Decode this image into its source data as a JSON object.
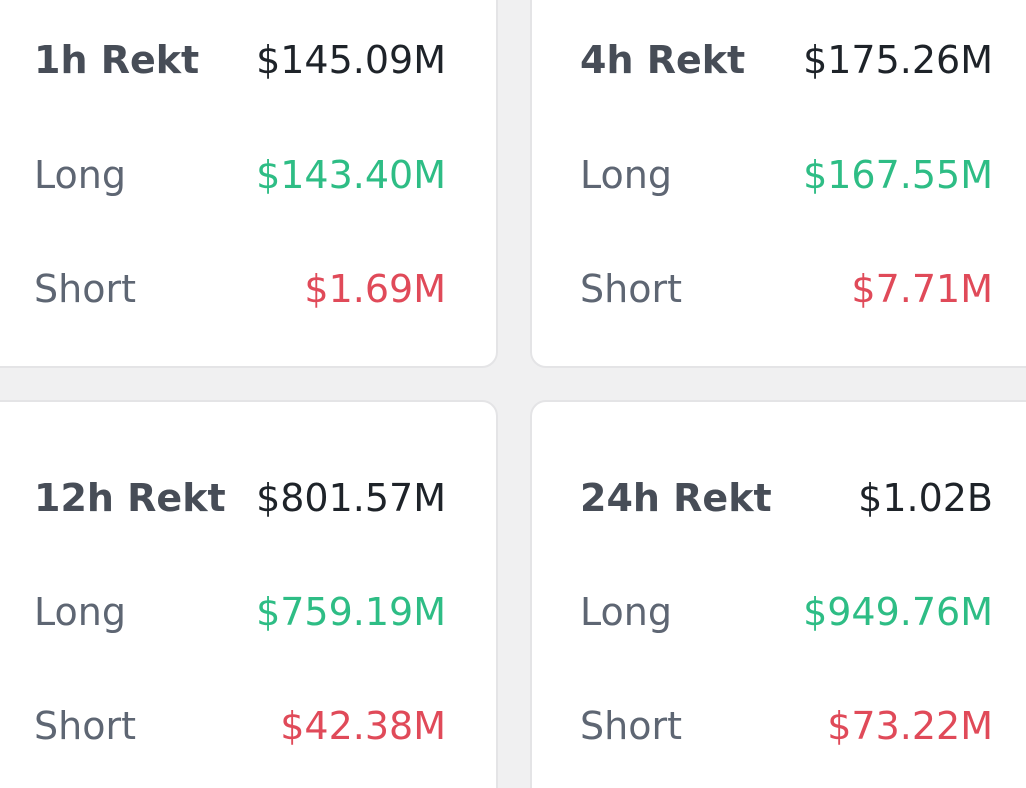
{
  "colors": {
    "background": "#f0f0f1",
    "card": "#ffffff",
    "long": "#2ebd85",
    "short": "#e04a59",
    "total": "#1e2329",
    "label": "#474d57"
  },
  "cards": [
    {
      "title": "1h Rekt",
      "total": "$145.09M",
      "long_label": "Long",
      "long_value": "$143.40M",
      "short_label": "Short",
      "short_value": "$1.69M"
    },
    {
      "title": "4h Rekt",
      "total": "$175.26M",
      "long_label": "Long",
      "long_value": "$167.55M",
      "short_label": "Short",
      "short_value": "$7.71M"
    },
    {
      "title": "12h Rekt",
      "total": "$801.57M",
      "long_label": "Long",
      "long_value": "$759.19M",
      "short_label": "Short",
      "short_value": "$42.38M"
    },
    {
      "title": "24h Rekt",
      "total": "$1.02B",
      "long_label": "Long",
      "long_value": "$949.76M",
      "short_label": "Short",
      "short_value": "$73.22M"
    }
  ]
}
